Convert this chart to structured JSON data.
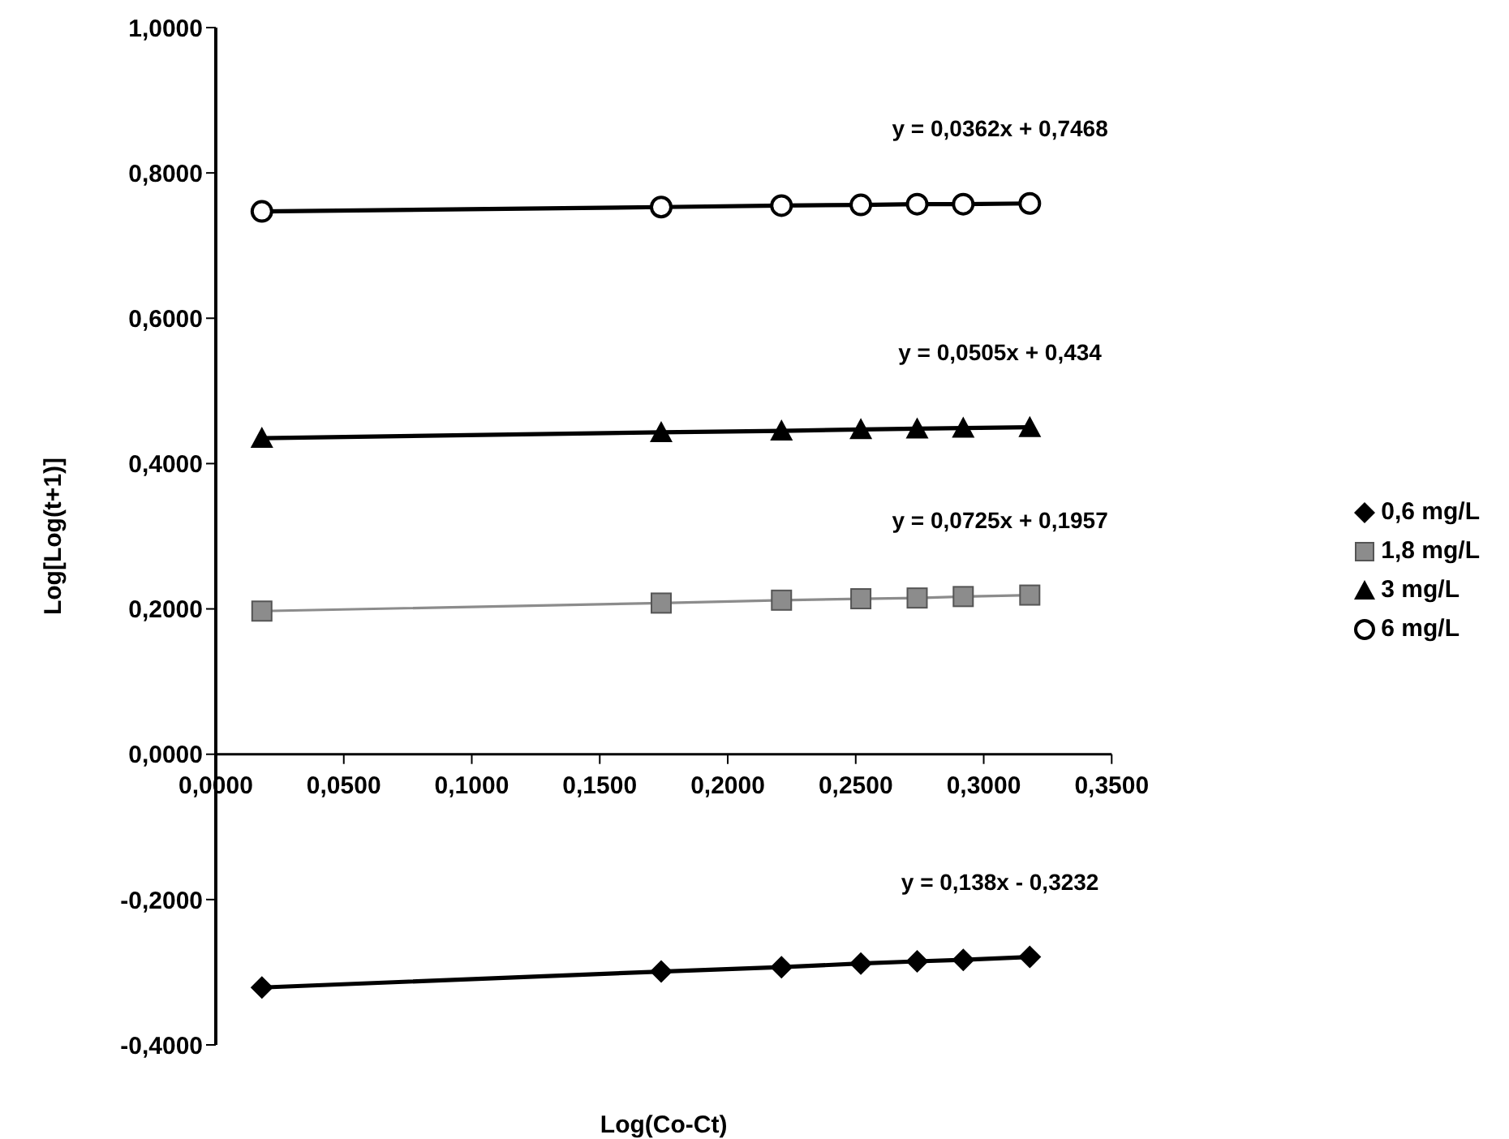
{
  "chart_data": {
    "type": "line",
    "xlabel": "Log(Co-Ct)",
    "ylabel": "Log[Log(t+1)]",
    "x": [
      0.018,
      0.174,
      0.221,
      0.252,
      0.274,
      0.292,
      0.318
    ],
    "series": [
      {
        "name": "0,6 mg/L",
        "color": "#000000",
        "marker": "diamond",
        "values": [
          -0.321,
          -0.299,
          -0.293,
          -0.288,
          -0.285,
          -0.283,
          -0.279
        ]
      },
      {
        "name": "1,8 mg/L",
        "color": "#8c8c8c",
        "marker": "square",
        "values": [
          0.197,
          0.208,
          0.212,
          0.214,
          0.215,
          0.217,
          0.219
        ]
      },
      {
        "name": "3 mg/L",
        "color": "#000000",
        "marker": "triangle",
        "values": [
          0.435,
          0.443,
          0.445,
          0.447,
          0.448,
          0.449,
          0.45
        ]
      },
      {
        "name": "6 mg/L",
        "color": "#000000",
        "marker": "circle",
        "values": [
          0.747,
          0.753,
          0.755,
          0.756,
          0.757,
          0.757,
          0.758
        ]
      }
    ],
    "xlim": [
      0,
      0.35
    ],
    "xticks": [
      {
        "value": 0,
        "label": "0,0000"
      },
      {
        "value": 0.05,
        "label": "0,0500"
      },
      {
        "value": 0.1,
        "label": "0,1000"
      },
      {
        "value": 0.15,
        "label": "0,1500"
      },
      {
        "value": 0.2,
        "label": "0,2000"
      },
      {
        "value": 0.25,
        "label": "0,2500"
      },
      {
        "value": 0.3,
        "label": "0,3000"
      },
      {
        "value": 0.35,
        "label": "0,3500"
      }
    ],
    "ylim": [
      -0.4,
      1.0
    ],
    "yticks": [
      {
        "value": -0.4,
        "label": "-0,4000"
      },
      {
        "value": -0.2,
        "label": "-0,2000"
      },
      {
        "value": 0,
        "label": "0,0000"
      },
      {
        "value": 0.2,
        "label": "0,2000"
      },
      {
        "value": 0.4,
        "label": "0,4000"
      },
      {
        "value": 0.6,
        "label": "0,6000"
      },
      {
        "value": 0.8,
        "label": "0,8000"
      },
      {
        "value": 1.0,
        "label": "1,0000"
      }
    ],
    "grid": false,
    "legend": "right",
    "annotations": [
      "y = 0,0362x + 0,7468",
      "y = 0,0505x + 0,434",
      "y = 0,0725x + 0,1957",
      "y = 0,138x - 0,3232"
    ]
  }
}
